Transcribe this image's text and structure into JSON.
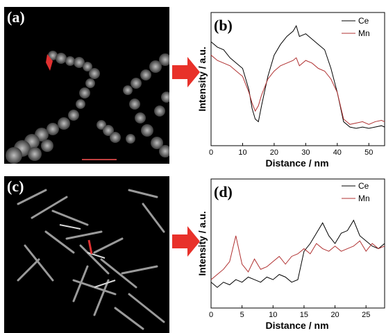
{
  "panels": {
    "a": {
      "label": "(a)"
    },
    "c": {
      "label": "(c)"
    }
  },
  "colors": {
    "ce": "#000000",
    "mn": "#b03030",
    "arrow": "#e8312a",
    "marker": "#e03030"
  },
  "chart_data": [
    {
      "type": "line",
      "panel_label": "(b)",
      "xlabel": "Distance / nm",
      "ylabel": "Intensity / a.u.",
      "xlim": [
        0,
        55
      ],
      "ylim": [
        0,
        1
      ],
      "xticks": [
        "0",
        "10",
        "20",
        "30",
        "40",
        "50"
      ],
      "xtick_values": [
        0,
        10,
        20,
        30,
        40,
        50
      ],
      "grid": false,
      "legend": "top-right",
      "series": [
        {
          "name": "Ce",
          "x": [
            0,
            2,
            4,
            6,
            8,
            10,
            12,
            13,
            14,
            15,
            16,
            18,
            20,
            22,
            24,
            26,
            27,
            28,
            30,
            32,
            34,
            36,
            38,
            40,
            42,
            44,
            46,
            48,
            50,
            52,
            54,
            55
          ],
          "y": [
            0.78,
            0.74,
            0.72,
            0.66,
            0.62,
            0.58,
            0.42,
            0.28,
            0.2,
            0.18,
            0.3,
            0.52,
            0.68,
            0.76,
            0.82,
            0.86,
            0.9,
            0.82,
            0.84,
            0.8,
            0.76,
            0.72,
            0.58,
            0.4,
            0.18,
            0.14,
            0.13,
            0.14,
            0.13,
            0.14,
            0.15,
            0.14
          ]
        },
        {
          "name": "Mn",
          "x": [
            0,
            2,
            4,
            6,
            8,
            10,
            12,
            13,
            14,
            15,
            16,
            18,
            20,
            22,
            24,
            26,
            27,
            28,
            30,
            32,
            34,
            36,
            38,
            40,
            42,
            44,
            46,
            48,
            50,
            52,
            54,
            55
          ],
          "y": [
            0.68,
            0.64,
            0.62,
            0.6,
            0.56,
            0.52,
            0.4,
            0.32,
            0.26,
            0.3,
            0.38,
            0.5,
            0.56,
            0.6,
            0.62,
            0.64,
            0.66,
            0.6,
            0.64,
            0.62,
            0.58,
            0.56,
            0.5,
            0.4,
            0.2,
            0.16,
            0.17,
            0.18,
            0.16,
            0.18,
            0.19,
            0.18
          ]
        }
      ]
    },
    {
      "type": "line",
      "panel_label": "(d)",
      "xlabel": "Distance / nm",
      "ylabel": "Intensity / a.u.",
      "xlim": [
        0,
        28
      ],
      "ylim": [
        0,
        1
      ],
      "xticks": [
        "0",
        "5",
        "10",
        "15",
        "20",
        "25"
      ],
      "xtick_values": [
        0,
        5,
        10,
        15,
        20,
        25
      ],
      "grid": false,
      "legend": "top-right",
      "series": [
        {
          "name": "Ce",
          "x": [
            0,
            1,
            2,
            3,
            4,
            5,
            6,
            7,
            8,
            9,
            10,
            11,
            12,
            13,
            14,
            15,
            16,
            17,
            18,
            19,
            20,
            21,
            22,
            23,
            24,
            25,
            26,
            27,
            28
          ],
          "y": [
            0.2,
            0.16,
            0.2,
            0.18,
            0.22,
            0.2,
            0.24,
            0.22,
            0.2,
            0.24,
            0.22,
            0.26,
            0.24,
            0.2,
            0.22,
            0.44,
            0.5,
            0.58,
            0.66,
            0.56,
            0.5,
            0.58,
            0.6,
            0.68,
            0.56,
            0.52,
            0.48,
            0.46,
            0.5
          ]
        },
        {
          "name": "Mn",
          "x": [
            0,
            1,
            2,
            3,
            4,
            5,
            6,
            7,
            8,
            9,
            10,
            11,
            12,
            13,
            14,
            15,
            16,
            17,
            18,
            19,
            20,
            21,
            22,
            23,
            24,
            25,
            26,
            27,
            28
          ],
          "y": [
            0.22,
            0.26,
            0.3,
            0.36,
            0.56,
            0.34,
            0.28,
            0.38,
            0.3,
            0.32,
            0.36,
            0.4,
            0.34,
            0.4,
            0.42,
            0.46,
            0.42,
            0.5,
            0.46,
            0.44,
            0.48,
            0.44,
            0.46,
            0.48,
            0.52,
            0.44,
            0.5,
            0.46,
            0.48
          ]
        }
      ]
    }
  ]
}
